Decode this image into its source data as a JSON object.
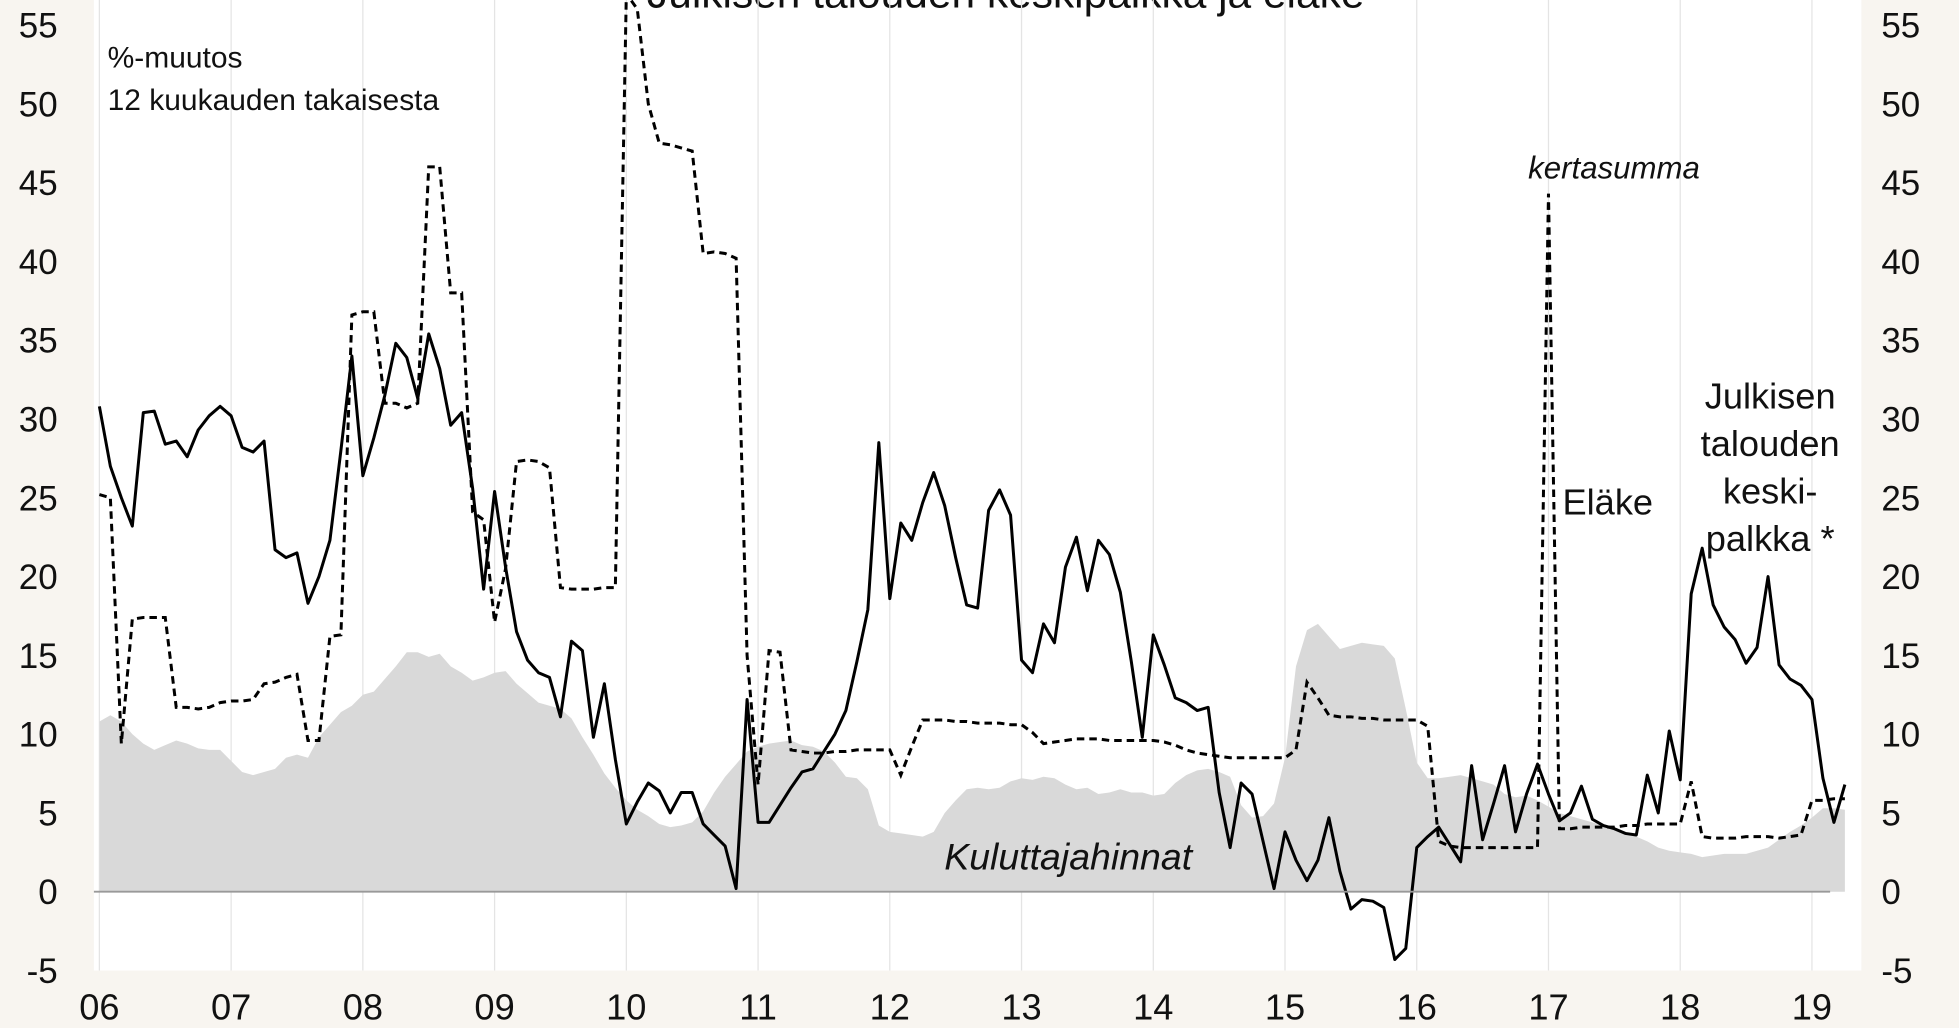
{
  "chart_data": {
    "type": "line",
    "title": "Julkisen talouden keskipalkka ja eläke",
    "annotations": [
      "%-muutos",
      "12 kuukauden takaisesta",
      "kertasumma"
    ],
    "x": [
      0,
      1,
      2,
      3,
      4,
      5,
      6,
      7,
      8,
      9,
      10,
      11,
      12,
      13,
      14,
      15,
      16,
      17,
      18,
      19,
      20,
      21,
      22,
      23,
      24,
      25,
      26,
      27,
      28,
      29,
      30,
      31,
      32,
      33,
      34,
      35,
      36,
      37,
      38,
      39,
      40,
      41,
      42,
      43,
      44,
      45,
      46,
      47,
      48,
      49,
      50,
      51,
      52,
      53,
      54,
      55,
      56,
      57,
      58,
      59,
      60,
      61,
      62,
      63,
      64,
      65,
      66,
      67,
      68,
      69,
      70,
      71,
      72,
      73,
      74,
      75,
      76,
      77,
      78,
      79,
      80,
      81,
      82,
      83,
      84,
      85,
      86,
      87,
      88,
      89,
      90,
      91,
      92,
      93,
      94,
      95,
      96,
      97,
      98,
      99,
      100,
      101,
      102,
      103,
      104,
      105,
      106,
      107,
      108,
      109,
      110,
      111,
      112,
      113,
      114,
      115,
      116,
      117,
      118,
      119,
      120,
      121,
      122,
      123,
      124,
      125,
      126,
      127,
      128,
      129,
      130,
      131,
      132,
      133,
      134,
      135,
      136,
      137,
      138,
      139,
      140,
      141,
      142,
      143,
      144,
      145,
      146,
      147,
      148,
      149,
      150,
      151,
      152,
      153,
      154,
      155,
      156,
      157,
      158,
      159
    ],
    "xlim": [
      -0.5,
      160.5
    ],
    "xticks": [
      {
        "value": 0,
        "label": "06"
      },
      {
        "value": 12,
        "label": "07"
      },
      {
        "value": 24,
        "label": "08"
      },
      {
        "value": 36,
        "label": "09"
      },
      {
        "value": 48,
        "label": "10"
      },
      {
        "value": 60,
        "label": "11"
      },
      {
        "value": 72,
        "label": "12"
      },
      {
        "value": 84,
        "label": "13"
      },
      {
        "value": 96,
        "label": "14"
      },
      {
        "value": 108,
        "label": "15"
      },
      {
        "value": 120,
        "label": "16"
      },
      {
        "value": 132,
        "label": "17"
      },
      {
        "value": 144,
        "label": "18"
      },
      {
        "value": 156,
        "label": "19"
      }
    ],
    "ylim": [
      -5,
      55
    ],
    "yticks": [
      -5,
      0,
      5,
      10,
      15,
      20,
      25,
      30,
      35,
      40,
      45,
      50,
      55
    ],
    "y2lim": [
      -5,
      55
    ],
    "y2ticks": [
      -5,
      0,
      5,
      10,
      15,
      20,
      25,
      30,
      35,
      40,
      45,
      50,
      55
    ],
    "grid": true,
    "series": [
      {
        "name": "Kuluttajahinnat",
        "style": "area",
        "color": "#d9d9d9",
        "values": [
          10.8,
          11.2,
          10.8,
          10,
          9.4,
          9.0,
          9.3,
          9.6,
          9.4,
          9.1,
          9.0,
          9.0,
          8.3,
          7.6,
          7.4,
          7.6,
          7.8,
          8.5,
          8.7,
          8.5,
          9.8,
          10.6,
          11.4,
          11.8,
          12.5,
          12.7,
          13.5,
          14.3,
          15.2,
          15.2,
          14.9,
          15.1,
          14.3,
          13.9,
          13.4,
          13.6,
          13.9,
          14,
          13.2,
          12.6,
          12,
          11.8,
          11.6,
          11,
          9.8,
          8.7,
          7.5,
          6.6,
          5.8,
          5.2,
          4.8,
          4.3,
          4.1,
          4.2,
          4.4,
          5.1,
          6.3,
          7.3,
          8.1,
          8.9,
          9.2,
          9.4,
          9.5,
          9.6,
          9.3,
          9.2,
          8.9,
          8.2,
          7.3,
          7.2,
          6.5,
          4.2,
          3.8,
          3.7,
          3.6,
          3.5,
          3.8,
          5,
          5.8,
          6.5,
          6.6,
          6.5,
          6.6,
          7,
          7.2,
          7.1,
          7.3,
          7.2,
          6.8,
          6.5,
          6.6,
          6.2,
          6.3,
          6.5,
          6.3,
          6.3,
          6.1,
          6.2,
          6.9,
          7.4,
          7.7,
          7.8,
          7.6,
          7.3,
          5.5,
          4.7,
          4.8,
          5.6,
          8.5,
          14.3,
          16.6,
          17,
          16.2,
          15.4,
          15.6,
          15.8,
          15.7,
          15.6,
          14.8,
          11.6,
          8.2,
          7.2,
          7.2,
          7.3,
          7.4,
          7.2,
          7.0,
          6.8,
          6.2,
          6.0,
          6.1,
          5.8,
          5.4,
          5.0,
          4.8,
          4.6,
          4.4,
          4.2,
          4.0,
          3.7,
          3.5,
          3.2,
          2.8,
          2.6,
          2.5,
          2.4,
          2.2,
          2.3,
          2.4,
          2.4,
          2.4,
          2.6,
          2.8,
          3.3,
          3.8,
          4.2,
          4.7,
          5.3,
          5.3,
          5.2
        ]
      },
      {
        "name": "Eläke",
        "style": "dashed",
        "color": "#000000",
        "values": [
          25.2,
          25,
          9.4,
          17.3,
          17.4,
          17.4,
          17.4,
          11.7,
          11.7,
          11.6,
          11.7,
          12,
          12.1,
          12.1,
          12.2,
          13.2,
          13.3,
          13.6,
          13.8,
          9.6,
          9.6,
          16.2,
          16.3,
          36.6,
          36.8,
          36.8,
          31,
          31,
          30.7,
          31,
          46,
          46,
          38,
          38,
          24.1,
          23.6,
          17.1,
          20.5,
          27.3,
          27.4,
          27.3,
          26.9,
          19.3,
          19.2,
          19.2,
          19.2,
          19.3,
          19.3,
          57,
          56,
          50,
          47.5,
          47.4,
          47.2,
          47,
          40.5,
          40.6,
          40.5,
          40.2,
          15,
          6.8,
          15.3,
          15.2,
          9,
          8.9,
          8.8,
          8.8,
          8.9,
          8.9,
          9,
          9,
          9,
          9,
          7.4,
          9.2,
          10.9,
          10.9,
          10.9,
          10.8,
          10.8,
          10.7,
          10.7,
          10.7,
          10.6,
          10.6,
          10.1,
          9.4,
          9.5,
          9.6,
          9.7,
          9.7,
          9.7,
          9.6,
          9.6,
          9.6,
          9.6,
          9.6,
          9.5,
          9.3,
          9,
          8.8,
          8.7,
          8.6,
          8.5,
          8.5,
          8.5,
          8.5,
          8.5,
          8.5,
          9,
          13.3,
          12.3,
          11.2,
          11.1,
          11.1,
          11,
          11,
          10.9,
          10.9,
          10.9,
          10.9,
          10.5,
          3.2,
          2.9,
          2.8,
          2.8,
          2.8,
          2.8,
          2.8,
          2.8,
          2.8,
          2.8,
          44.3,
          4,
          4,
          4.1,
          4.1,
          4.1,
          4.1,
          4.2,
          4.2,
          4.3,
          4.3,
          4.3,
          4.3,
          7,
          3.5,
          3.4,
          3.4,
          3.4,
          3.5,
          3.5,
          3.5,
          3.4,
          3.5,
          3.6,
          5.8,
          5.8,
          5.9,
          5.9
        ]
      },
      {
        "name": [
          "Julkisen",
          "talouden",
          "keski-",
          "palkka *"
        ],
        "style": "solid",
        "color": "#000000",
        "values": [
          30.8,
          27,
          25,
          23.2,
          30.4,
          30.5,
          28.4,
          28.6,
          27.6,
          29.3,
          30.2,
          30.8,
          30.2,
          28.2,
          27.9,
          28.6,
          21.7,
          21.2,
          21.5,
          18.3,
          20,
          22.3,
          28,
          34,
          26.4,
          28.8,
          31.5,
          34.8,
          33.9,
          31.3,
          35.4,
          33.2,
          29.6,
          30.4,
          25.6,
          19.2,
          25.4,
          20.6,
          16.5,
          14.7,
          13.9,
          13.6,
          11.1,
          15.9,
          15.3,
          9.8,
          13.2,
          8.4,
          4.3,
          5.7,
          6.9,
          6.4,
          5,
          6.3,
          6.3,
          4.3,
          3.6,
          2.9,
          0.2,
          12.2,
          4.4,
          4.4,
          5.5,
          6.6,
          7.6,
          7.8,
          8.9,
          10,
          11.5,
          14.6,
          17.9,
          28.5,
          18.6,
          23.4,
          22.3,
          24.7,
          26.6,
          24.5,
          21.2,
          18.2,
          18,
          24.2,
          25.5,
          23.9,
          14.7,
          13.9,
          17,
          15.8,
          20.6,
          22.5,
          19.1,
          22.3,
          21.4,
          19,
          14.6,
          9.8,
          16.3,
          14.4,
          12.3,
          12,
          11.5,
          11.7,
          6.3,
          2.8,
          6.9,
          6.2,
          3.2,
          0.2,
          3.8,
          2,
          0.7,
          2,
          4.7,
          1.3,
          -1.1,
          -0.5,
          -0.6,
          -1,
          -4.3,
          -3.6,
          2.8,
          3.5,
          4.1,
          3,
          1.9,
          8,
          3.3,
          5.6,
          8,
          3.8,
          6.2,
          8.1,
          6.2,
          4.5,
          5,
          6.7,
          4.6,
          4.2,
          4,
          3.7,
          3.6,
          7.4,
          5,
          10.2,
          7.1,
          18.9,
          21.8,
          18.2,
          16.8,
          16,
          14.5,
          15.5,
          20,
          14.4,
          13.5,
          13.1,
          12.2,
          7.2,
          4.4,
          6.8
        ]
      }
    ]
  }
}
